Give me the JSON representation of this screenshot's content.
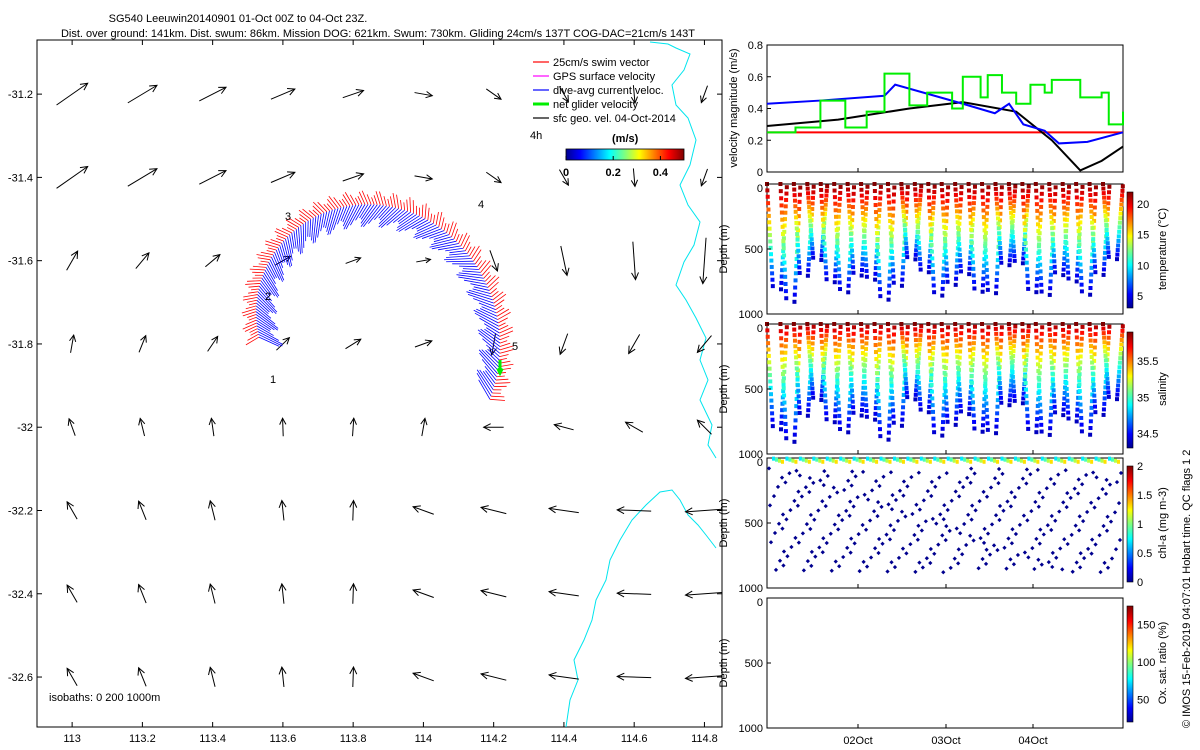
{
  "header": {
    "title": "SG540 Leeuwin20140901 01-Oct 00Z to 04-Oct 23Z.",
    "subtitle": "Dist. over ground: 141km. Dist. swum: 86km. Mission DOG: 621km. Swum: 730km. Gliding 24cm/s 137T COG-DAC=21cm/s 143T"
  },
  "side_caption": "© IMOS 15-Feb-2019 04:07:01 Hobart time. QC flags 1  2",
  "colors": {
    "swim": "#ff0000",
    "gps": "#ff00ff",
    "dac": "#0000ff",
    "net": "#00ee00",
    "geo": "#000000",
    "coast": "#00e5ee"
  },
  "chart_data": [
    {
      "type": "quiver_map",
      "xlim": [
        112.9,
        114.85
      ],
      "ylim": [
        -32.72,
        -31.07
      ],
      "x_ticks": [
        "113",
        "113.2",
        "113.4",
        "113.6",
        "113.8",
        "114",
        "114.2",
        "114.4",
        "114.6",
        "114.8"
      ],
      "y_ticks": [
        "-31.2",
        "-31.4",
        "-31.6",
        "-31.8",
        "-32",
        "-32.2",
        "-32.4",
        "-32.6"
      ],
      "legend": [
        {
          "label": "25cm/s swim vector",
          "color": "#ff0000"
        },
        {
          "label": "GPS surface velocity",
          "color": "#ff00ff"
        },
        {
          "label": "dive-avg current veloc.",
          "color": "#0000ff"
        },
        {
          "label": "net glider velocity",
          "color": "#00ee00"
        },
        {
          "label": "sfc geo. vel. 04-Oct-2014",
          "color": "#000000"
        }
      ],
      "time_label": "4h",
      "colorbar": {
        "unit": "(m/s)",
        "ticks": [
          "0",
          "0.2",
          "0.4"
        ],
        "range": [
          0,
          0.5
        ]
      },
      "isobaths_label": "isobaths: 0   200  1000m",
      "day_markers": [
        "1",
        "2",
        "3",
        "4",
        "5"
      ],
      "geo_grid_lon": [
        113.0,
        113.2,
        113.4,
        113.6,
        113.8,
        114.0,
        114.2,
        114.4,
        114.6,
        114.8
      ],
      "geo_grid_lat": [
        -31.2,
        -31.4,
        -31.6,
        -31.8,
        -32.0,
        -32.2,
        -32.4,
        -32.6
      ]
    },
    {
      "type": "line",
      "ylabel": "velocity magnitude (m/s)",
      "ylim": [
        0,
        0.8
      ],
      "y_ticks": [
        "0",
        "0.2",
        "0.4",
        "0.6",
        "0.8"
      ],
      "series": [
        {
          "color": "#ff0000",
          "x": [
            0,
            1
          ],
          "y": [
            0.25,
            0.25
          ]
        },
        {
          "color": "#000000",
          "x": [
            0,
            0.2,
            0.4,
            0.55,
            0.7,
            0.8,
            0.88,
            0.94,
            1
          ],
          "y": [
            0.29,
            0.33,
            0.4,
            0.44,
            0.38,
            0.2,
            0.01,
            0.07,
            0.16
          ]
        },
        {
          "color": "#0000ff",
          "x": [
            0,
            0.15,
            0.33,
            0.36,
            0.55,
            0.64,
            0.68,
            0.72,
            0.78,
            0.82,
            0.9,
            1
          ],
          "y": [
            0.43,
            0.45,
            0.48,
            0.55,
            0.43,
            0.37,
            0.43,
            0.3,
            0.26,
            0.18,
            0.19,
            0.25
          ]
        },
        {
          "color": "#00ee00",
          "x": [
            0,
            0.08,
            0.15,
            0.22,
            0.28,
            0.33,
            0.4,
            0.45,
            0.52,
            0.55,
            0.6,
            0.62,
            0.66,
            0.7,
            0.74,
            0.78,
            0.8,
            0.88,
            0.94,
            0.96,
            1
          ],
          "y": [
            0.25,
            0.28,
            0.45,
            0.28,
            0.38,
            0.62,
            0.42,
            0.5,
            0.4,
            0.6,
            0.47,
            0.61,
            0.5,
            0.43,
            0.55,
            0.5,
            0.58,
            0.47,
            0.5,
            0.3,
            0.38
          ]
        }
      ]
    },
    {
      "type": "scatter",
      "ylabel": "Depth (m)",
      "ylim": [
        1000,
        0
      ],
      "y_ticks": [
        "0",
        "500",
        "1000"
      ],
      "colorbar": {
        "label": "temperature (°C)",
        "ticks": [
          "5",
          "10",
          "15",
          "20"
        ],
        "range": [
          3,
          22
        ]
      },
      "dives": 26
    },
    {
      "type": "scatter",
      "ylabel": "Depth (m)",
      "ylim": [
        1000,
        0
      ],
      "y_ticks": [
        "0",
        "500",
        "1000"
      ],
      "colorbar": {
        "label": "salinity",
        "ticks": [
          "34.5",
          "35",
          "35.5"
        ],
        "range": [
          34.3,
          35.9
        ]
      },
      "dives": 26
    },
    {
      "type": "scatter",
      "ylabel": "Depth (m)",
      "ylim": [
        1000,
        0
      ],
      "y_ticks": [
        "0",
        "500",
        "1000"
      ],
      "colorbar": {
        "label": "chl-a (mg m-3)",
        "ticks": [
          "0",
          "0.5",
          "1",
          "1.5",
          "2"
        ],
        "range": [
          0,
          2
        ]
      },
      "dives": 26
    },
    {
      "type": "scatter",
      "ylabel": "Depth (m)",
      "ylim": [
        1000,
        0
      ],
      "y_ticks": [
        "0",
        "500",
        "1000"
      ],
      "colorbar": {
        "label": "Ox. sat. ratio (%)",
        "ticks": [
          "50",
          "100",
          "150"
        ],
        "range": [
          20,
          175
        ]
      },
      "x_ticks": [
        "02Oct",
        "03Oct",
        "04Oct"
      ]
    }
  ]
}
